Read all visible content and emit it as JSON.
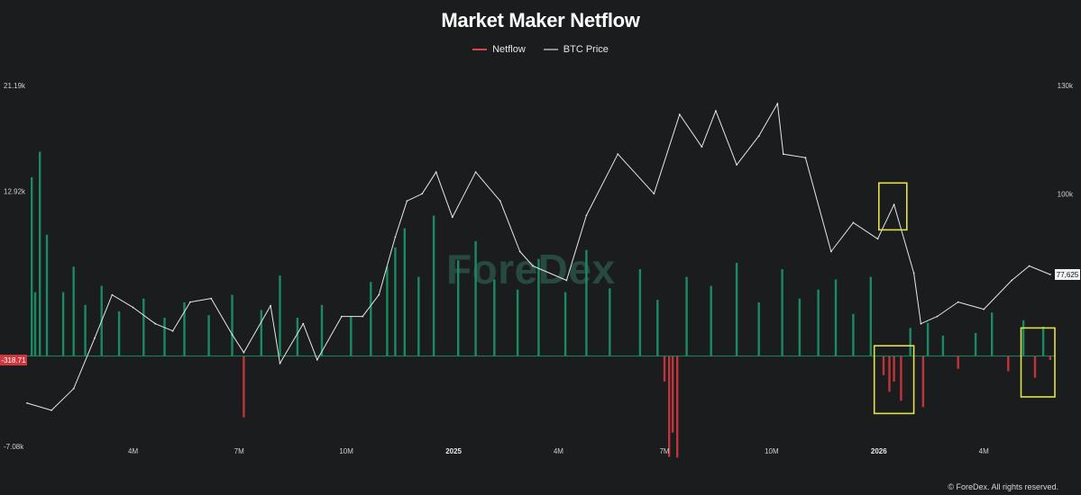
{
  "chart_data": {
    "type": "bar",
    "title": "Market Maker Netflow",
    "legend": [
      "Netflow",
      "BTC Price"
    ],
    "legend_position": "top-center",
    "colors": {
      "netflow_positive": "#1b8a61",
      "netflow_negative": "#c0343b",
      "btc_price": "#e6e6e6",
      "highlight_box": "#e3e14a",
      "background": "#1b1c1e"
    },
    "left_axis": {
      "ticks": [
        "21.19k",
        "12.92k",
        "-7.08k"
      ],
      "range": [
        -7080,
        21190
      ],
      "current_label": "-318.71"
    },
    "right_axis": {
      "ticks": [
        "130k",
        "100k"
      ],
      "range": [
        30000,
        130000
      ],
      "current_label": "77,625"
    },
    "x_axis": {
      "ticks": [
        "4M",
        "7M",
        "10M",
        "2025",
        "4M",
        "7M",
        "10M",
        "2026",
        "4M"
      ],
      "bold_ticks": [
        "2025",
        "2026"
      ],
      "range": [
        "2024-01-01",
        "2026-06-01"
      ]
    },
    "series": [
      {
        "name": "BTC Price",
        "type": "line",
        "points": [
          [
            "2024-01-01",
            42000
          ],
          [
            "2024-01-22",
            40000
          ],
          [
            "2024-02-10",
            46000
          ],
          [
            "2024-02-28",
            60000
          ],
          [
            "2024-03-14",
            72000
          ],
          [
            "2024-04-01",
            68500
          ],
          [
            "2024-04-20",
            64000
          ],
          [
            "2024-05-05",
            62000
          ],
          [
            "2024-05-20",
            70000
          ],
          [
            "2024-06-07",
            71000
          ],
          [
            "2024-06-25",
            61000
          ],
          [
            "2024-07-05",
            56000
          ],
          [
            "2024-07-28",
            69000
          ],
          [
            "2024-08-05",
            53000
          ],
          [
            "2024-08-25",
            64000
          ],
          [
            "2024-09-06",
            54000
          ],
          [
            "2024-09-27",
            66000
          ],
          [
            "2024-10-15",
            66000
          ],
          [
            "2024-10-29",
            72000
          ],
          [
            "2024-11-12",
            88000
          ],
          [
            "2024-11-22",
            98000
          ],
          [
            "2024-12-05",
            100000
          ],
          [
            "2024-12-17",
            106000
          ],
          [
            "2024-12-31",
            93500
          ],
          [
            "2025-01-20",
            106000
          ],
          [
            "2025-02-10",
            98000
          ],
          [
            "2025-02-27",
            84000
          ],
          [
            "2025-03-10",
            80000
          ],
          [
            "2025-04-08",
            76000
          ],
          [
            "2025-04-25",
            94000
          ],
          [
            "2025-05-22",
            111000
          ],
          [
            "2025-06-22",
            100000
          ],
          [
            "2025-07-14",
            122000
          ],
          [
            "2025-08-02",
            113000
          ],
          [
            "2025-08-14",
            123000
          ],
          [
            "2025-09-01",
            108000
          ],
          [
            "2025-09-20",
            116000
          ],
          [
            "2025-10-06",
            125000
          ],
          [
            "2025-10-11",
            111000
          ],
          [
            "2025-10-30",
            110000
          ],
          [
            "2025-11-21",
            84000
          ],
          [
            "2025-12-10",
            92000
          ],
          [
            "2025-12-31",
            87500
          ],
          [
            "2026-01-14",
            97000
          ],
          [
            "2026-01-31",
            78000
          ],
          [
            "2026-02-06",
            64000
          ],
          [
            "2026-02-20",
            66000
          ],
          [
            "2026-03-10",
            70000
          ],
          [
            "2026-04-01",
            68000
          ],
          [
            "2026-04-25",
            76000
          ],
          [
            "2026-05-10",
            80000
          ],
          [
            "2026-05-28",
            77625
          ]
        ]
      },
      {
        "name": "Netflow",
        "type": "bar",
        "points": [
          [
            "2024-01-05",
            14000
          ],
          [
            "2024-01-08",
            5000
          ],
          [
            "2024-01-12",
            16000
          ],
          [
            "2024-01-18",
            9500
          ],
          [
            "2024-02-01",
            5000
          ],
          [
            "2024-02-10",
            7000
          ],
          [
            "2024-02-20",
            4000
          ],
          [
            "2024-03-05",
            5500
          ],
          [
            "2024-03-20",
            3500
          ],
          [
            "2024-04-10",
            4500
          ],
          [
            "2024-04-28",
            3000
          ],
          [
            "2024-05-15",
            4200
          ],
          [
            "2024-06-05",
            3200
          ],
          [
            "2024-06-25",
            4800
          ],
          [
            "2024-07-05",
            -4800
          ],
          [
            "2024-07-20",
            3600
          ],
          [
            "2024-08-05",
            6300
          ],
          [
            "2024-08-20",
            3000
          ],
          [
            "2024-09-10",
            4000
          ],
          [
            "2024-10-05",
            3100
          ],
          [
            "2024-10-22",
            5800
          ],
          [
            "2024-11-05",
            7000
          ],
          [
            "2024-11-12",
            8500
          ],
          [
            "2024-11-20",
            10000
          ],
          [
            "2024-12-02",
            6200
          ],
          [
            "2024-12-15",
            11000
          ],
          [
            "2025-01-05",
            7500
          ],
          [
            "2025-01-20",
            9000
          ],
          [
            "2025-02-05",
            6000
          ],
          [
            "2025-02-25",
            5200
          ],
          [
            "2025-03-15",
            7600
          ],
          [
            "2025-04-07",
            5000
          ],
          [
            "2025-04-25",
            8300
          ],
          [
            "2025-05-15",
            5300
          ],
          [
            "2025-06-10",
            6800
          ],
          [
            "2025-06-25",
            4400
          ],
          [
            "2025-07-01",
            -2000
          ],
          [
            "2025-07-05",
            -7900
          ],
          [
            "2025-07-08",
            -6000
          ],
          [
            "2025-07-12",
            -7950
          ],
          [
            "2025-07-20",
            6200
          ],
          [
            "2025-08-10",
            5500
          ],
          [
            "2025-09-01",
            7300
          ],
          [
            "2025-09-20",
            4200
          ],
          [
            "2025-10-10",
            6800
          ],
          [
            "2025-10-25",
            4500
          ],
          [
            "2025-11-10",
            5200
          ],
          [
            "2025-11-25",
            6000
          ],
          [
            "2025-12-10",
            3300
          ],
          [
            "2025-12-25",
            6200
          ],
          [
            "2026-01-05",
            -1500
          ],
          [
            "2026-01-10",
            -2800
          ],
          [
            "2026-01-14",
            -2000
          ],
          [
            "2026-01-20",
            -3500
          ],
          [
            "2026-01-28",
            2200
          ],
          [
            "2026-02-08",
            -4000
          ],
          [
            "2026-02-12",
            2600
          ],
          [
            "2026-02-25",
            1600
          ],
          [
            "2026-03-10",
            -1000
          ],
          [
            "2026-03-25",
            1800
          ],
          [
            "2026-04-08",
            3400
          ],
          [
            "2026-04-22",
            -1200
          ],
          [
            "2026-05-05",
            2800
          ],
          [
            "2026-05-15",
            -1700
          ],
          [
            "2026-05-22",
            2300
          ],
          [
            "2026-05-28",
            -318.71
          ]
        ]
      }
    ],
    "grid": false,
    "annotations": [
      {
        "type": "box",
        "on": "BTC Price",
        "from": "2026-01-01",
        "to": "2026-01-25",
        "low": 90000,
        "high": 103000
      },
      {
        "type": "box",
        "on": "Netflow",
        "from": "2025-12-28",
        "to": "2026-01-31",
        "low": -4500,
        "high": 800
      },
      {
        "type": "box",
        "on": "Netflow",
        "from": "2026-05-03",
        "to": "2026-06-01",
        "low": -3200,
        "high": 2200
      }
    ]
  },
  "watermark": "ForeDex",
  "copyright": "© ForeDex. All rights reserved."
}
